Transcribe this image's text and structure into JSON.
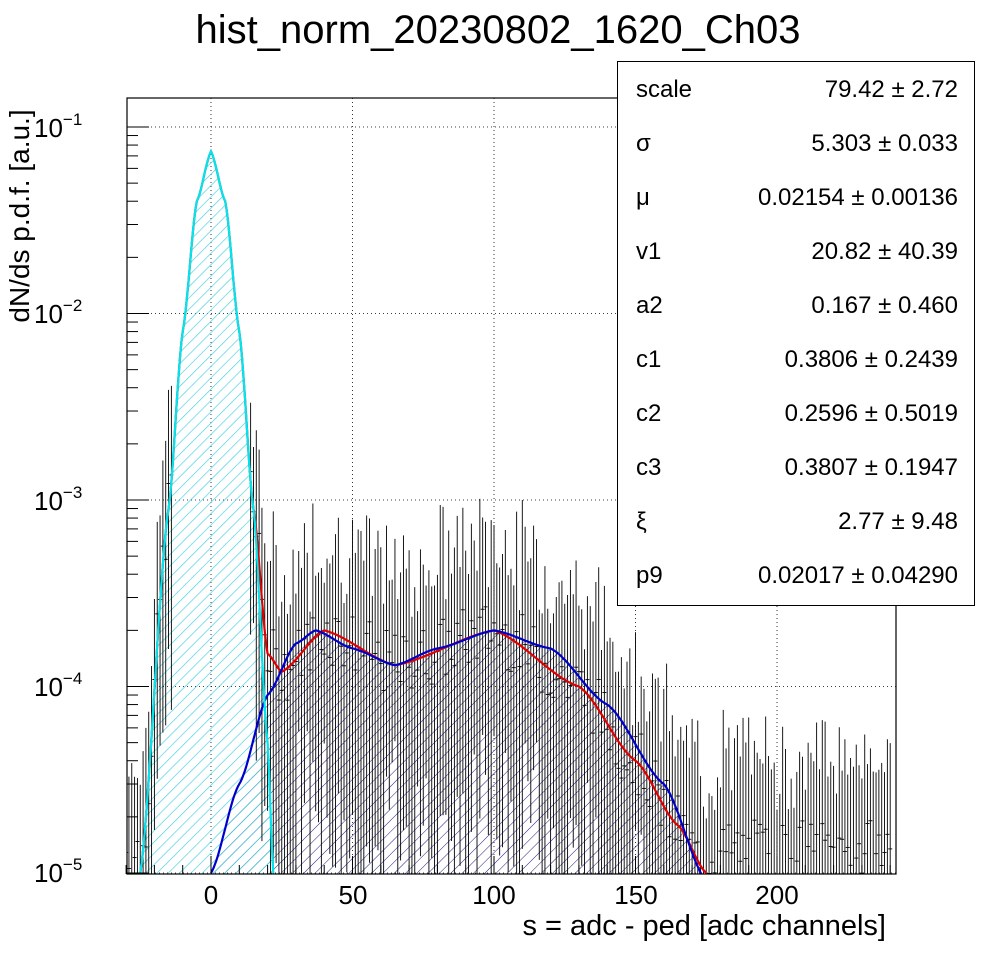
{
  "title": "hist_norm_20230802_1620_Ch03",
  "chart_data": {
    "type": "histogram",
    "title": "hist_norm_20230802_1620_Ch03",
    "xlabel": "s = adc - ped [adc channels]",
    "ylabel": "dN/ds p.d.f. [a.u.]",
    "xlim": [
      -38,
      242
    ],
    "ylim": [
      9.5e-06,
      0.135
    ],
    "yscale": "log",
    "grid": true,
    "x_ticks": [
      "0",
      "50",
      "100",
      "150",
      "200"
    ],
    "y_ticks": [
      {
        "base": "10",
        "exp": "−1"
      },
      {
        "base": "10",
        "exp": "−2"
      },
      {
        "base": "10",
        "exp": "−3"
      },
      {
        "base": "10",
        "exp": "−4"
      },
      {
        "base": "10",
        "exp": "−5"
      }
    ],
    "series": [
      {
        "x": [
          -25,
          -15,
          -10,
          -5,
          0,
          5,
          10,
          15,
          20,
          25,
          40,
          65,
          100,
          130,
          150,
          165,
          175
        ],
        "values": [
          1e-05,
          0.0009,
          0.008,
          0.04,
          0.074,
          0.04,
          0.008,
          0.0009,
          0.00015,
          0.00012,
          0.0002,
          0.00013,
          0.0002,
          0.0001,
          4e-05,
          1.8e-05,
          1e-05
        ]
      },
      {
        "x": [
          -25,
          -15,
          -10,
          -5,
          0,
          5,
          10,
          15,
          20,
          22
        ],
        "values": [
          1e-05,
          0.0009,
          0.008,
          0.04,
          0.074,
          0.04,
          0.008,
          0.0009,
          5e-05,
          1e-05
        ]
      },
      {
        "x": [
          0,
          10,
          20,
          30,
          37,
          50,
          65,
          80,
          100,
          120,
          140,
          160,
          175
        ],
        "values": [
          1e-05,
          3e-05,
          9e-05,
          0.00017,
          0.0002,
          0.00016,
          0.00013,
          0.00016,
          0.0002,
          0.00016,
          8e-05,
          3e-05,
          9e-06
        ]
      }
    ],
    "colors": {
      "total_fit": "#e00000",
      "pedestal_fit": "#00e5ee",
      "signal_fit": "#0000cc",
      "pedestal_hatch": "#40d0e0",
      "signal_hatch": "#1a237e"
    }
  },
  "stats": [
    {
      "name": "scale",
      "value": "79.42 ± 2.72"
    },
    {
      "name": "σ",
      "value": "5.303 ± 0.033"
    },
    {
      "name": "μ",
      "value": "0.02154 ± 0.00136"
    },
    {
      "name": "v1",
      "value": "20.82 ± 40.39"
    },
    {
      "name": "a2",
      "value": "0.167 ± 0.460"
    },
    {
      "name": "c1",
      "value": "0.3806 ± 0.2439"
    },
    {
      "name": "c2",
      "value": "0.2596 ± 0.5019"
    },
    {
      "name": "c3",
      "value": "0.3807 ± 0.1947"
    },
    {
      "name": "ξ",
      "value": "2.77 ± 9.48"
    },
    {
      "name": "p9",
      "value": "0.02017 ± 0.04290"
    }
  ]
}
